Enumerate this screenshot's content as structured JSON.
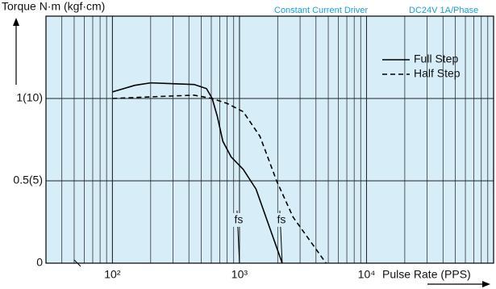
{
  "chart_data": {
    "type": "line",
    "y_label": "Torque N·m (kgf·cm)",
    "x_label": "Pulse Rate (PPS)",
    "driver": "Constant Current Driver",
    "supply": "DC24V 1A/Phase",
    "log_x": true,
    "grid": true,
    "xlim": [
      30,
      100000
    ],
    "ylim": [
      0,
      1.5
    ],
    "xticks": [
      {
        "value": 100,
        "label": "10²"
      },
      {
        "value": 1000,
        "label": "10³"
      },
      {
        "value": 10000,
        "label": "10⁴"
      }
    ],
    "yticks": [
      0,
      {
        "value": 0.5,
        "label": "0.5(5)"
      },
      {
        "value": 1,
        "label": "1(10)"
      }
    ],
    "legend": "upper right",
    "series": [
      {
        "name": "Full Step",
        "color": "#000000",
        "dash": false,
        "x": [
          100,
          150,
          200,
          300,
          440,
          550,
          610,
          670,
          740,
          860,
          1070,
          1350,
          2170
        ],
        "values": [
          1.04,
          1.08,
          1.095,
          1.09,
          1.085,
          1.06,
          1.0,
          0.89,
          0.74,
          0.645,
          0.57,
          0.45,
          0
        ]
      },
      {
        "name": "Half Step",
        "color": "#000000",
        "dash": true,
        "x": [
          100,
          200,
          440,
          610,
          800,
          1070,
          1450,
          1960,
          2640,
          4800
        ],
        "values": [
          1.0,
          1.01,
          1.02,
          1.0,
          0.97,
          0.92,
          0.77,
          0.5,
          0.28,
          0
        ]
      }
    ],
    "annotations": [
      {
        "text": "fs",
        "x": 1000,
        "y": 0.26
      },
      {
        "text": "fs",
        "x": 2170,
        "y": 0.26
      }
    ]
  }
}
